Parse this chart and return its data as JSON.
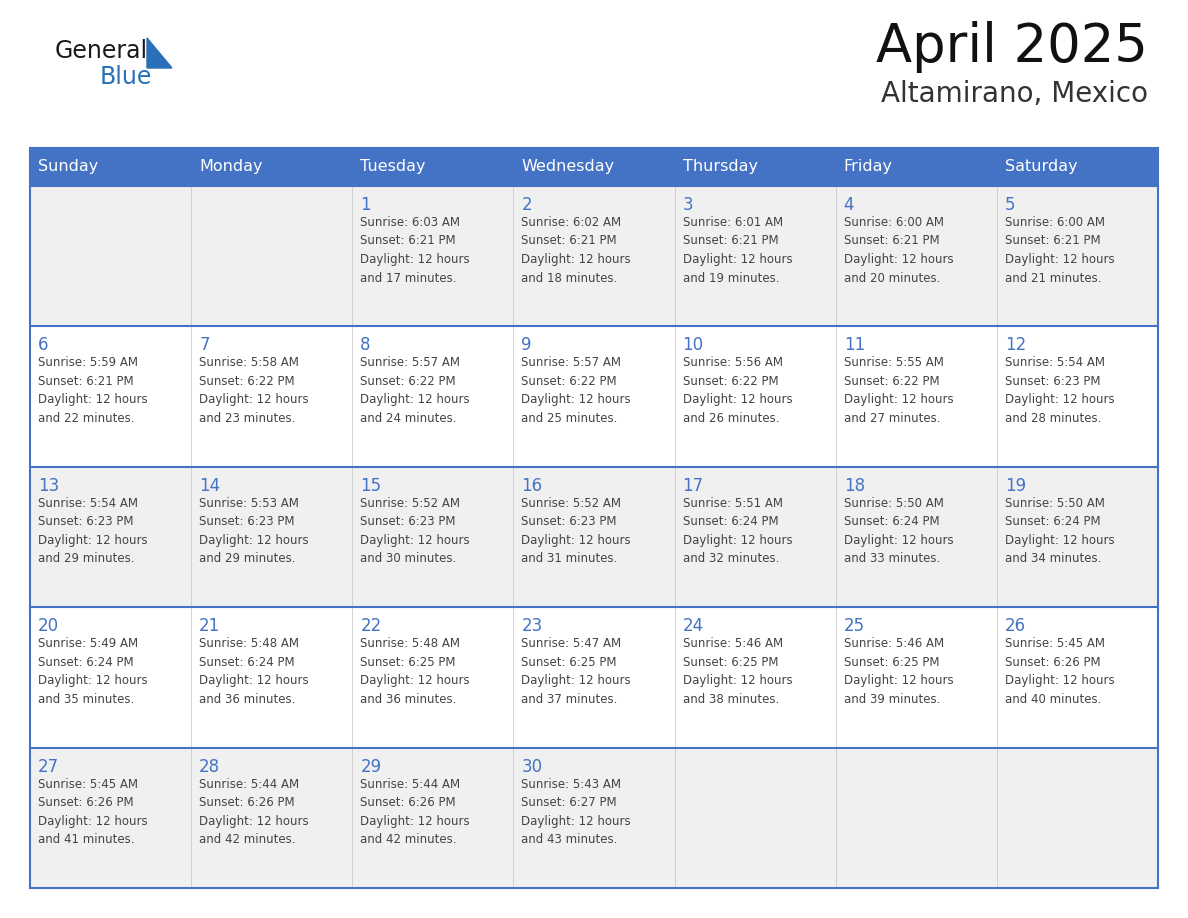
{
  "title": "April 2025",
  "subtitle": "Altamirano, Mexico",
  "header_bg_color": "#4472C4",
  "header_text_color": "#FFFFFF",
  "row_bg_even": "#FFFFFF",
  "row_bg_odd": "#F0F0F0",
  "border_color": "#4472C4",
  "text_color": "#444444",
  "day_num_color": "#4472C4",
  "logo_color_general": "#1a1a1a",
  "logo_color_blue": "#2970B8",
  "day_headers": [
    "Sunday",
    "Monday",
    "Tuesday",
    "Wednesday",
    "Thursday",
    "Friday",
    "Saturday"
  ],
  "weeks": [
    [
      {
        "day": "",
        "info": ""
      },
      {
        "day": "",
        "info": ""
      },
      {
        "day": "1",
        "info": "Sunrise: 6:03 AM\nSunset: 6:21 PM\nDaylight: 12 hours\nand 17 minutes."
      },
      {
        "day": "2",
        "info": "Sunrise: 6:02 AM\nSunset: 6:21 PM\nDaylight: 12 hours\nand 18 minutes."
      },
      {
        "day": "3",
        "info": "Sunrise: 6:01 AM\nSunset: 6:21 PM\nDaylight: 12 hours\nand 19 minutes."
      },
      {
        "day": "4",
        "info": "Sunrise: 6:00 AM\nSunset: 6:21 PM\nDaylight: 12 hours\nand 20 minutes."
      },
      {
        "day": "5",
        "info": "Sunrise: 6:00 AM\nSunset: 6:21 PM\nDaylight: 12 hours\nand 21 minutes."
      }
    ],
    [
      {
        "day": "6",
        "info": "Sunrise: 5:59 AM\nSunset: 6:21 PM\nDaylight: 12 hours\nand 22 minutes."
      },
      {
        "day": "7",
        "info": "Sunrise: 5:58 AM\nSunset: 6:22 PM\nDaylight: 12 hours\nand 23 minutes."
      },
      {
        "day": "8",
        "info": "Sunrise: 5:57 AM\nSunset: 6:22 PM\nDaylight: 12 hours\nand 24 minutes."
      },
      {
        "day": "9",
        "info": "Sunrise: 5:57 AM\nSunset: 6:22 PM\nDaylight: 12 hours\nand 25 minutes."
      },
      {
        "day": "10",
        "info": "Sunrise: 5:56 AM\nSunset: 6:22 PM\nDaylight: 12 hours\nand 26 minutes."
      },
      {
        "day": "11",
        "info": "Sunrise: 5:55 AM\nSunset: 6:22 PM\nDaylight: 12 hours\nand 27 minutes."
      },
      {
        "day": "12",
        "info": "Sunrise: 5:54 AM\nSunset: 6:23 PM\nDaylight: 12 hours\nand 28 minutes."
      }
    ],
    [
      {
        "day": "13",
        "info": "Sunrise: 5:54 AM\nSunset: 6:23 PM\nDaylight: 12 hours\nand 29 minutes."
      },
      {
        "day": "14",
        "info": "Sunrise: 5:53 AM\nSunset: 6:23 PM\nDaylight: 12 hours\nand 29 minutes."
      },
      {
        "day": "15",
        "info": "Sunrise: 5:52 AM\nSunset: 6:23 PM\nDaylight: 12 hours\nand 30 minutes."
      },
      {
        "day": "16",
        "info": "Sunrise: 5:52 AM\nSunset: 6:23 PM\nDaylight: 12 hours\nand 31 minutes."
      },
      {
        "day": "17",
        "info": "Sunrise: 5:51 AM\nSunset: 6:24 PM\nDaylight: 12 hours\nand 32 minutes."
      },
      {
        "day": "18",
        "info": "Sunrise: 5:50 AM\nSunset: 6:24 PM\nDaylight: 12 hours\nand 33 minutes."
      },
      {
        "day": "19",
        "info": "Sunrise: 5:50 AM\nSunset: 6:24 PM\nDaylight: 12 hours\nand 34 minutes."
      }
    ],
    [
      {
        "day": "20",
        "info": "Sunrise: 5:49 AM\nSunset: 6:24 PM\nDaylight: 12 hours\nand 35 minutes."
      },
      {
        "day": "21",
        "info": "Sunrise: 5:48 AM\nSunset: 6:24 PM\nDaylight: 12 hours\nand 36 minutes."
      },
      {
        "day": "22",
        "info": "Sunrise: 5:48 AM\nSunset: 6:25 PM\nDaylight: 12 hours\nand 36 minutes."
      },
      {
        "day": "23",
        "info": "Sunrise: 5:47 AM\nSunset: 6:25 PM\nDaylight: 12 hours\nand 37 minutes."
      },
      {
        "day": "24",
        "info": "Sunrise: 5:46 AM\nSunset: 6:25 PM\nDaylight: 12 hours\nand 38 minutes."
      },
      {
        "day": "25",
        "info": "Sunrise: 5:46 AM\nSunset: 6:25 PM\nDaylight: 12 hours\nand 39 minutes."
      },
      {
        "day": "26",
        "info": "Sunrise: 5:45 AM\nSunset: 6:26 PM\nDaylight: 12 hours\nand 40 minutes."
      }
    ],
    [
      {
        "day": "27",
        "info": "Sunrise: 5:45 AM\nSunset: 6:26 PM\nDaylight: 12 hours\nand 41 minutes."
      },
      {
        "day": "28",
        "info": "Sunrise: 5:44 AM\nSunset: 6:26 PM\nDaylight: 12 hours\nand 42 minutes."
      },
      {
        "day": "29",
        "info": "Sunrise: 5:44 AM\nSunset: 6:26 PM\nDaylight: 12 hours\nand 42 minutes."
      },
      {
        "day": "30",
        "info": "Sunrise: 5:43 AM\nSunset: 6:27 PM\nDaylight: 12 hours\nand 43 minutes."
      },
      {
        "day": "",
        "info": ""
      },
      {
        "day": "",
        "info": ""
      },
      {
        "day": "",
        "info": ""
      }
    ]
  ]
}
